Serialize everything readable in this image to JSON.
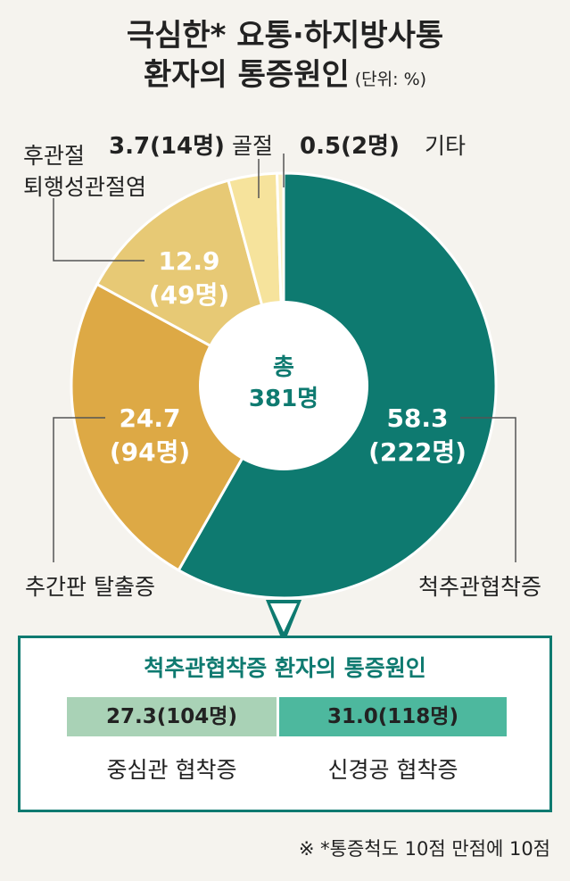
{
  "title": {
    "line1": "극심한* 요통·하지방사통",
    "line2": "환자의 통증원인",
    "unit": "(단위: %)"
  },
  "chart_data": {
    "type": "pie",
    "variant": "donut",
    "center_label": "총",
    "center_total": "381명",
    "slices": [
      {
        "name": "척추관협착증",
        "value": 58.3,
        "count": "222명",
        "value_text": "58.3",
        "count_text": "(222명)",
        "color": "#0e7a70"
      },
      {
        "name": "추간판 탈출증",
        "value": 24.7,
        "count": "94명",
        "value_text": "24.7",
        "count_text": "(94명)",
        "color": "#dda945"
      },
      {
        "name": "후관절 퇴행성관절염",
        "value": 12.9,
        "count": "49명",
        "value_text": "12.9",
        "count_text": "(49명)",
        "color": "#e7c975"
      },
      {
        "name": "골절",
        "value": 3.7,
        "count": "14명",
        "value_text": "3.7(14명)",
        "color": "#f6e39c"
      },
      {
        "name": "기타",
        "value": 0.5,
        "count": "2명",
        "value_text": "0.5(2명)",
        "color": "#fbefc1"
      }
    ],
    "labels": {
      "stenosis": "척추관협착증",
      "disc": "추간판 탈출증",
      "facet_line1": "후관절",
      "facet_line2": "퇴행성관절염",
      "fracture": "골절",
      "other": "기타"
    },
    "breakdown": {
      "title": "척추관협착증 환자의 통증원인",
      "items": [
        {
          "name": "중심관 협착증",
          "value": 27.3,
          "value_text": "27.3(104명)",
          "color": "#a9d2b6"
        },
        {
          "name": "신경공 협착증",
          "value": 31.0,
          "value_text": "31.0(118명)",
          "color": "#4db89e"
        }
      ]
    }
  },
  "footnote": "※ *통증척도 10점 만점에 10점"
}
